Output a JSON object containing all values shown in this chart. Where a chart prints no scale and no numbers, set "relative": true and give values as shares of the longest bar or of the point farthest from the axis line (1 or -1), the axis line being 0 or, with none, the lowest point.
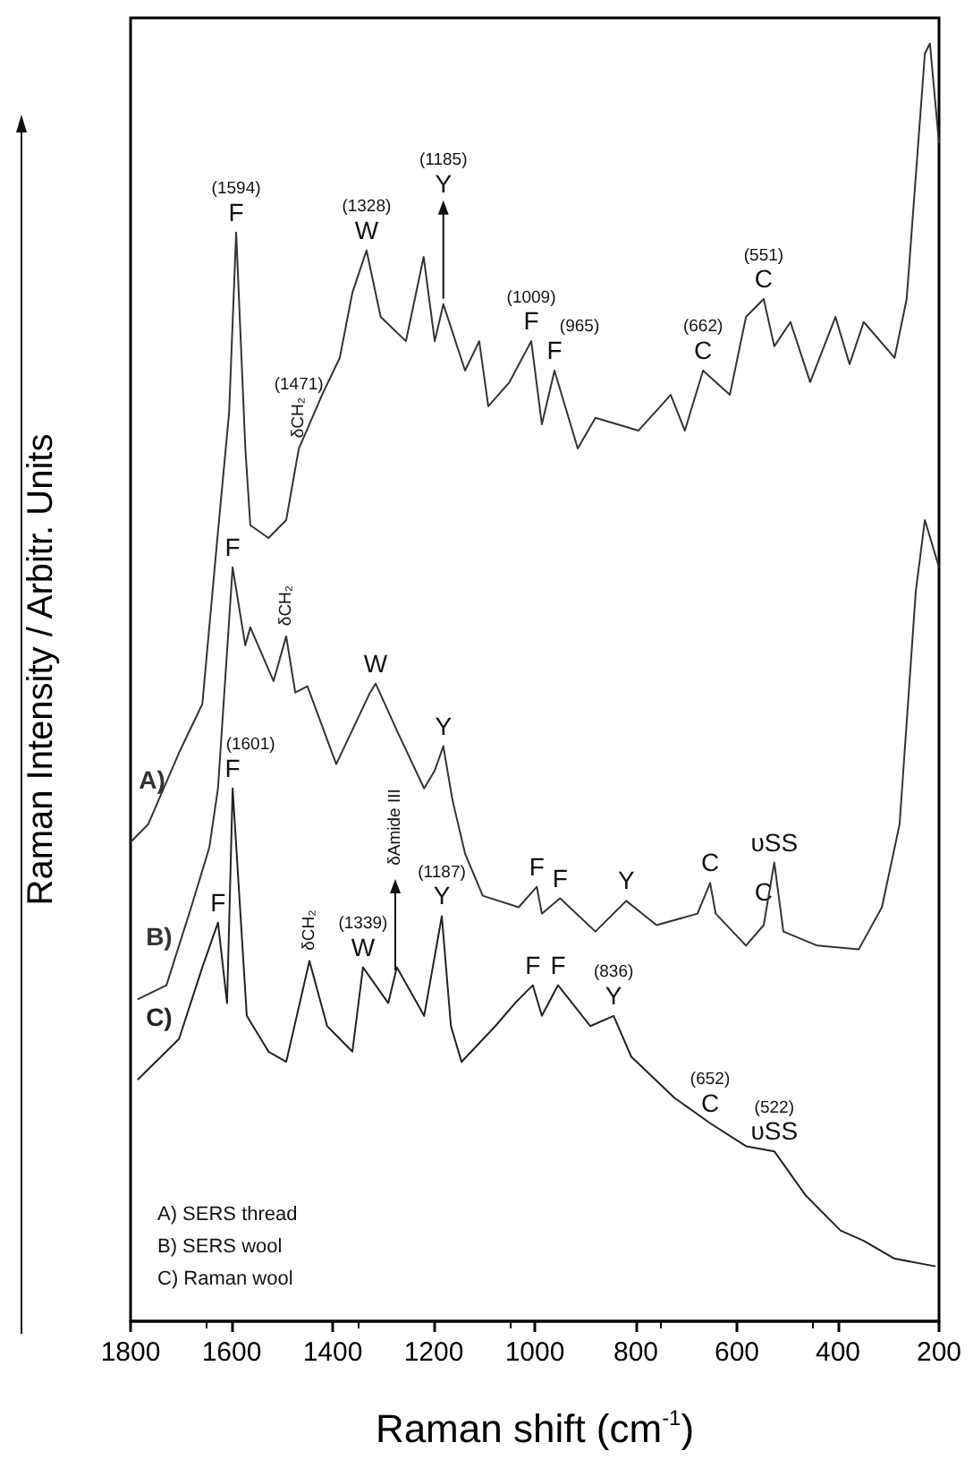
{
  "chart_data": {
    "type": "line",
    "relative": true,
    "xlabel": "Raman shift (cm$^{-1}$)",
    "ylabel": "Raman Intensity / Arbitr. Units",
    "xlim": [
      1800,
      200
    ],
    "xticks": [
      1800,
      1600,
      1400,
      1200,
      1000,
      800,
      600,
      400,
      200
    ],
    "grid": false,
    "legend": false,
    "marker": "none",
    "line_style": "solid",
    "series": [
      {
        "name": "A)",
        "color": "#333333",
        "x": [
          1800,
          1765,
          1704,
          1658,
          1627,
          1605,
          1591,
          1573,
          1563,
          1527,
          1492,
          1467,
          1446,
          1421,
          1386,
          1361,
          1333,
          1305,
          1255,
          1220,
          1198,
          1181,
          1138,
          1110,
          1092,
          1050,
          1007,
          986,
          961,
          915,
          880,
          795,
          731,
          703,
          667,
          614,
          582,
          547,
          526,
          494,
          455,
          405,
          377,
          349,
          288,
          264,
          228,
          218,
          200
        ],
        "values": [
          0.375,
          0.389,
          0.445,
          0.483,
          0.618,
          0.711,
          0.852,
          0.684,
          0.623,
          0.613,
          0.627,
          0.683,
          0.702,
          0.725,
          0.754,
          0.805,
          0.838,
          0.786,
          0.767,
          0.833,
          0.767,
          0.796,
          0.744,
          0.767,
          0.716,
          0.735,
          0.767,
          0.702,
          0.744,
          0.683,
          0.707,
          0.697,
          0.725,
          0.697,
          0.744,
          0.725,
          0.786,
          0.8,
          0.763,
          0.782,
          0.735,
          0.786,
          0.749,
          0.782,
          0.754,
          0.8,
          0.992,
          1,
          0.922
        ]
      },
      {
        "name": "B)",
        "color": "#333333",
        "x": [
          1786,
          1729,
          1680,
          1644,
          1627,
          1623,
          1598,
          1573,
          1563,
          1517,
          1492,
          1474,
          1450,
          1393,
          1326,
          1315,
          1269,
          1219,
          1198,
          1181,
          1163,
          1138,
          1103,
          1032,
          996,
          986,
          950,
          880,
          819,
          759,
          678,
          653,
          642,
          582,
          547,
          526,
          508,
          441,
          359,
          313,
          278,
          246,
          228,
          200
        ],
        "values": [
          0.252,
          0.263,
          0.324,
          0.371,
          0.417,
          0.441,
          0.59,
          0.529,
          0.543,
          0.501,
          0.536,
          0.492,
          0.497,
          0.436,
          0.492,
          0.499,
          0.459,
          0.417,
          0.431,
          0.45,
          0.408,
          0.366,
          0.333,
          0.324,
          0.34,
          0.319,
          0.331,
          0.305,
          0.329,
          0.31,
          0.319,
          0.343,
          0.319,
          0.294,
          0.31,
          0.359,
          0.305,
          0.294,
          0.291,
          0.324,
          0.389,
          0.571,
          0.627,
          0.59
        ]
      },
      {
        "name": "C)",
        "color": "#222222",
        "x": [
          1786,
          1704,
          1658,
          1627,
          1609,
          1598,
          1570,
          1527,
          1492,
          1446,
          1411,
          1361,
          1340,
          1290,
          1273,
          1219,
          1184,
          1166,
          1145,
          1078,
          1039,
          1004,
          986,
          954,
          890,
          844,
          809,
          724,
          653,
          582,
          526,
          465,
          395,
          349,
          288,
          207
        ],
        "values": [
          0.189,
          0.221,
          0.277,
          0.312,
          0.249,
          0.417,
          0.239,
          0.211,
          0.203,
          0.282,
          0.231,
          0.211,
          0.277,
          0.249,
          0.277,
          0.239,
          0.317,
          0.231,
          0.203,
          0.231,
          0.249,
          0.263,
          0.239,
          0.263,
          0.231,
          0.239,
          0.207,
          0.175,
          0.155,
          0.137,
          0.133,
          0.099,
          0.071,
          0.063,
          0.049,
          0.043
        ]
      }
    ],
    "annotations": [
      "A) SERS thread",
      "B) SERS wool",
      "C) Raman wool",
      {
        "text": "(1594)",
        "x": 1591,
        "y": 0.852
      },
      {
        "text": "F",
        "x": 1591,
        "y": 0.852
      },
      "(1471)",
      {
        "text": "δCH₂",
        "x": 1467,
        "y": 0.683
      },
      {
        "text": "(1328)",
        "x": 1333,
        "y": 0.838
      },
      {
        "text": "W",
        "x": 1333,
        "y": 0.838
      },
      "(1185)",
      {
        "text": "Y",
        "x": 1181,
        "y": 0.796
      },
      {
        "text": "(1009)",
        "x": 1007,
        "y": 0.767
      },
      {
        "text": "F",
        "x": 1007,
        "y": 0.767
      },
      {
        "text": "(965)",
        "x": 961,
        "y": 0.744
      },
      {
        "text": "F",
        "x": 961,
        "y": 0.744
      },
      {
        "text": "(662)",
        "x": 667,
        "y": 0.744
      },
      {
        "text": "C",
        "x": 667,
        "y": 0.744
      },
      {
        "text": "(551)",
        "x": 547,
        "y": 0.8
      },
      {
        "text": "C",
        "x": 547,
        "y": 0.8
      },
      {
        "text": "F",
        "x": 1598,
        "y": 0.59
      },
      {
        "text": "δCH₂",
        "x": 1492,
        "y": 0.536
      },
      {
        "text": "W",
        "x": 1315,
        "y": 0.499
      },
      {
        "text": "Y",
        "x": 1181,
        "y": 0.45
      },
      {
        "text": "(1601)",
        "x": 1598,
        "y": 0.417
      },
      {
        "text": "F",
        "x": 1598,
        "y": 0.417
      },
      "δAmide III",
      {
        "text": "F",
        "x": 996,
        "y": 0.34
      },
      {
        "text": "F",
        "x": 950,
        "y": 0.331
      },
      {
        "text": "Y",
        "x": 819,
        "y": 0.329
      },
      {
        "text": "C",
        "x": 653,
        "y": 0.343
      },
      {
        "text": "υSS",
        "x": 526,
        "y": 0.359
      },
      {
        "text": "C",
        "x": 547,
        "y": 0.31
      },
      {
        "text": "F",
        "x": 1627,
        "y": 0.312
      },
      {
        "text": "δCH₂",
        "x": 1446,
        "y": 0.282
      },
      {
        "text": "(1339)",
        "x": 1340,
        "y": 0.277
      },
      {
        "text": "W",
        "x": 1340,
        "y": 0.277
      },
      {
        "text": "(1187)",
        "x": 1184,
        "y": 0.317
      },
      {
        "text": "Y",
        "x": 1184,
        "y": 0.317
      },
      {
        "text": "F",
        "x": 1004,
        "y": 0.263
      },
      {
        "text": "F",
        "x": 954,
        "y": 0.263
      },
      {
        "text": "(836)",
        "x": 844,
        "y": 0.239
      },
      {
        "text": "Y",
        "x": 844,
        "y": 0.239
      },
      {
        "text": "(652)",
        "x": 653,
        "y": 0.155
      },
      {
        "text": "C",
        "x": 653,
        "y": 0.155
      },
      {
        "text": "(522)",
        "x": 526,
        "y": 0.133
      },
      {
        "text": "υSS",
        "x": 526,
        "y": 0.133
      }
    ]
  }
}
